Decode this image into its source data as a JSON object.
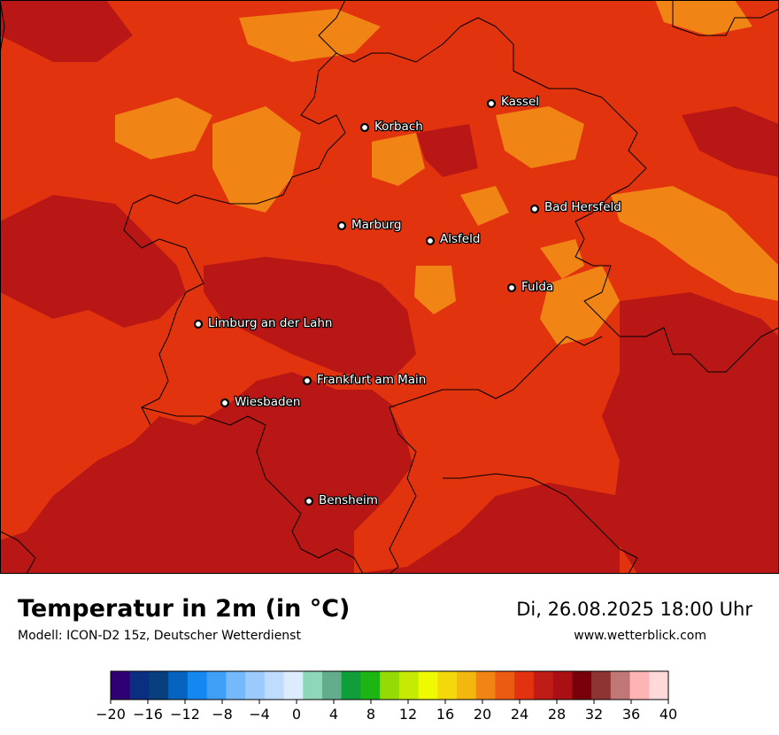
{
  "title": "Temperatur in 2m (in °C)",
  "subtitle": "Modell: ICON-D2 15z, Deutscher Wetterdienst",
  "datetime": "Di, 26.08.2025 18:00 Uhr",
  "website": "www.wetterblick.com",
  "map": {
    "background_color": "#b91716",
    "cities": [
      {
        "name": "Kassel",
        "label": "Kassel"
      },
      {
        "name": "Korbach",
        "label": "Korbach"
      },
      {
        "name": "Bad Hersfeld",
        "label": "Bad Hersfeld"
      },
      {
        "name": "Marburg",
        "label": "Marburg"
      },
      {
        "name": "Alsfeld",
        "label": "Alsfeld"
      },
      {
        "name": "Fulda",
        "label": "Fulda"
      },
      {
        "name": "Limburg an der Lahn",
        "label": "Limburg an der Lahn"
      },
      {
        "name": "Frankfurt am Main",
        "label": "Frankfurt am Main"
      },
      {
        "name": "Wiesbaden",
        "label": "Wiesbaden"
      },
      {
        "name": "Bensheim",
        "label": "Bensheim"
      }
    ]
  },
  "colorbar": {
    "unit": "°C",
    "min": -20,
    "max": 40,
    "step": 2,
    "tick_labels": [
      "−20",
      "−16",
      "−12",
      "−8",
      "−4",
      "0",
      "4",
      "8",
      "12",
      "16",
      "20",
      "24",
      "28",
      "32",
      "36",
      "40"
    ],
    "colors": [
      "#2e0073",
      "#0b2f80",
      "#083f7f",
      "#0663bf",
      "#1487f0",
      "#3f9ff7",
      "#73b9fb",
      "#9ccafd",
      "#bfdcfe",
      "#ddebfe",
      "#8ed8b9",
      "#63ad8c",
      "#109e3b",
      "#1db513",
      "#94db06",
      "#c5ea04",
      "#eff902",
      "#f3d80b",
      "#f2b80e",
      "#f08414",
      "#ec5b12",
      "#e2320f",
      "#c01c17",
      "#a90f13",
      "#79000a",
      "#8e3534",
      "#c07775",
      "#feb4b4",
      "#ffd9d9"
    ]
  }
}
